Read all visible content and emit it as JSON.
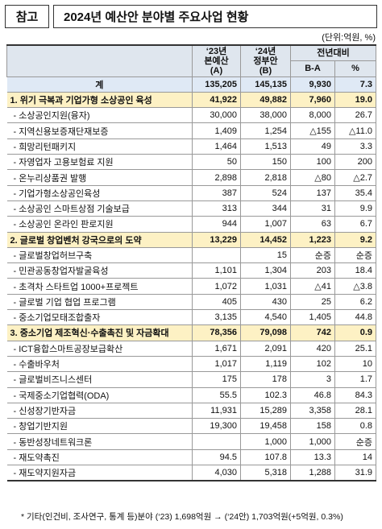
{
  "header": {
    "label": "참고",
    "title": "2024년 예산안 분야별 주요사업 현황"
  },
  "unit": "(단위:억원, %)",
  "table": {
    "head": {
      "col23": [
        "‘23년",
        "본예산",
        "(A)"
      ],
      "col24": [
        "‘24년",
        "정부안",
        "(B)"
      ],
      "group": "전년대비",
      "diff": "B-A",
      "pct": "%"
    },
    "rows": [
      {
        "style": "total",
        "cells": [
          "계",
          "135,205",
          "145,135",
          "9,930",
          "7.3"
        ]
      },
      {
        "style": "section",
        "cells": [
          "1. 위기 극복과 기업가형 소상공인 육성",
          "41,922",
          "49,882",
          "7,960",
          "19.0"
        ]
      },
      {
        "style": "item",
        "cells": [
          "- 소상공인지원(융자)",
          "30,000",
          "38,000",
          "8,000",
          "26.7"
        ]
      },
      {
        "style": "item",
        "cells": [
          "- 지역신용보증재단재보증",
          "1,409",
          "1,254",
          "△155",
          "△11.0"
        ]
      },
      {
        "style": "item",
        "cells": [
          "- 희망리턴패키지",
          "1,464",
          "1,513",
          "49",
          "3.3"
        ]
      },
      {
        "style": "item",
        "cells": [
          "- 자영업자 고용보험료 지원",
          "50",
          "150",
          "100",
          "200"
        ]
      },
      {
        "style": "item",
        "cells": [
          "- 온누리상품권 발행",
          "2,898",
          "2,818",
          "△80",
          "△2.7"
        ]
      },
      {
        "style": "item",
        "cells": [
          "- 기업가형소상공인육성",
          "387",
          "524",
          "137",
          "35.4"
        ]
      },
      {
        "style": "item",
        "cells": [
          "- 소상공인 스마트상점 기술보급",
          "313",
          "344",
          "31",
          "9.9"
        ]
      },
      {
        "style": "item",
        "cells": [
          "- 소상공인 온라인 판로지원",
          "944",
          "1,007",
          "63",
          "6.7"
        ]
      },
      {
        "style": "section",
        "cells": [
          "2. 글로벌 창업벤처 강국으로의 도약",
          "13,229",
          "14,452",
          "1,223",
          "9.2"
        ]
      },
      {
        "style": "item",
        "cells": [
          "- 글로벌창업허브구축",
          null,
          "15",
          "순증",
          "순증"
        ]
      },
      {
        "style": "item",
        "cells": [
          "- 민관공동창업자발굴육성",
          "1,101",
          "1,304",
          "203",
          "18.4"
        ]
      },
      {
        "style": "item",
        "cells": [
          "- 초격차 스타트업 1000+프로젝트",
          "1,072",
          "1,031",
          "△41",
          "△3.8"
        ]
      },
      {
        "style": "item",
        "cells": [
          "- 글로벌 기업 협업 프로그램",
          "405",
          "430",
          "25",
          "6.2"
        ]
      },
      {
        "style": "item",
        "cells": [
          "- 중소기업모태조합출자",
          "3,135",
          "4,540",
          "1,405",
          "44.8"
        ]
      },
      {
        "style": "section",
        "cells": [
          "3. 중소기업 제조혁신·수출촉진 및 자금확대",
          "78,356",
          "79,098",
          "742",
          "0.9"
        ]
      },
      {
        "style": "item",
        "cells": [
          "- ICT융합스마트공장보급확산",
          "1,671",
          "2,091",
          "420",
          "25.1"
        ]
      },
      {
        "style": "item",
        "cells": [
          "- 수출바우처",
          "1,017",
          "1,119",
          "102",
          "10"
        ]
      },
      {
        "style": "item",
        "cells": [
          "- 글로벌비즈니스센터",
          "175",
          "178",
          "3",
          "1.7"
        ]
      },
      {
        "style": "item",
        "cells": [
          "- 국제중소기업협력(ODA)",
          "55.5",
          "102.3",
          "46.8",
          "84.3"
        ]
      },
      {
        "style": "item",
        "cells": [
          "- 신성장기반자금",
          "11,931",
          "15,289",
          "3,358",
          "28.1"
        ]
      },
      {
        "style": "item",
        "cells": [
          "- 창업기반지원",
          "19,300",
          "19,458",
          "158",
          "0.8"
        ]
      },
      {
        "style": "item",
        "cells": [
          "- 동반성장네트워크론",
          null,
          "1,000",
          "1,000",
          "순증"
        ]
      },
      {
        "style": "item",
        "cells": [
          "- 재도약촉진",
          "94.5",
          "107.8",
          "13.3",
          "14"
        ]
      },
      {
        "style": "item",
        "cells": [
          "- 재도약지원자금",
          "4,030",
          "5,318",
          "1,288",
          "31.9"
        ]
      }
    ]
  },
  "footnote": "* 기타(인건비, 조사연구, 통계 등)분야 (‘23) 1,698억원 → (‘24안) 1,703억원(+5억원, 0.3%)"
}
